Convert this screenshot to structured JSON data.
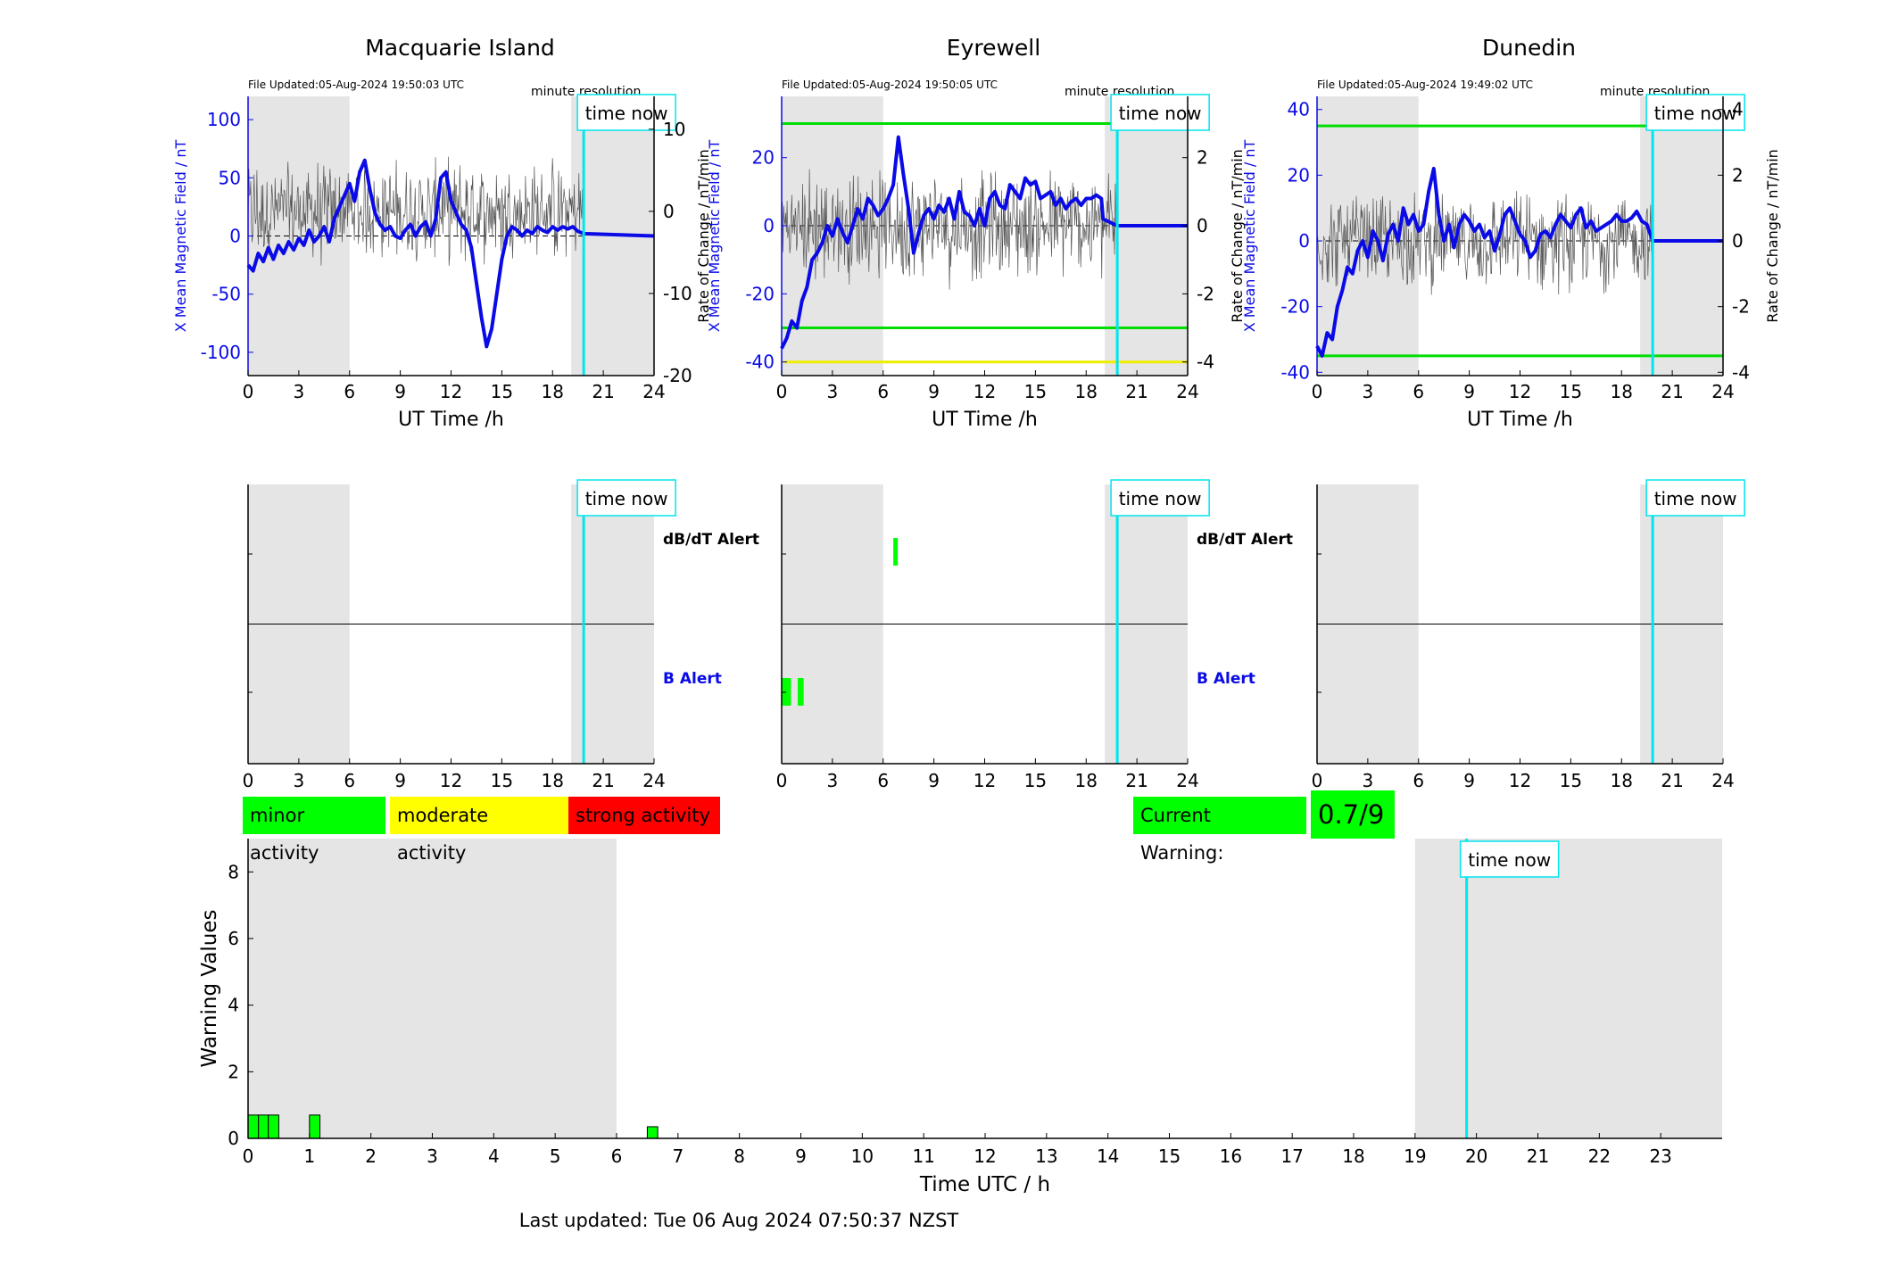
{
  "colors": {
    "x_field": "#0a0ae6",
    "rate": "#555555",
    "night": "#e5e5e5",
    "time_now": "#00e5ee",
    "minor": "#00ff00",
    "moderate": "#ffff00",
    "strong": "#ff0000"
  },
  "time_now_h": 19.84,
  "night_bands_h": [
    [
      0,
      6
    ],
    [
      19.1,
      24
    ]
  ],
  "time_now_label": "time now",
  "stations": [
    {
      "name": "Macquarie Island",
      "file_updated": "File Updated:05-Aug-2024 19:50:03 UTC",
      "resolution": "minute resolution",
      "xlabel": "UT Time /h",
      "ylabel_left": "X Mean Magnetic Field / nT",
      "ylabel_right": "Rate of Change / nT/min",
      "ylim_left": [
        -120,
        120
      ],
      "yticks_left": [
        "100",
        "50",
        "0",
        "-50",
        "-100"
      ],
      "yticks_left_values": [
        100,
        50,
        0,
        -50,
        -100
      ],
      "ylim_right": [
        -20,
        14
      ],
      "yticks_right": [
        "10",
        "0",
        "-10",
        "-20"
      ],
      "yticks_right_values": [
        10,
        0,
        -10,
        -20
      ],
      "xticks": [
        "0",
        "3",
        "6",
        "9",
        "12",
        "15",
        "18",
        "21",
        "24"
      ],
      "threshold_lines": [],
      "x_field_series": [
        [
          0,
          -25
        ],
        [
          0.3,
          -30
        ],
        [
          0.6,
          -15
        ],
        [
          0.9,
          -22
        ],
        [
          1.2,
          -10
        ],
        [
          1.5,
          -20
        ],
        [
          1.8,
          -8
        ],
        [
          2.1,
          -15
        ],
        [
          2.4,
          -5
        ],
        [
          2.7,
          -12
        ],
        [
          3.0,
          -2
        ],
        [
          3.3,
          -8
        ],
        [
          3.6,
          5
        ],
        [
          3.9,
          -5
        ],
        [
          4.2,
          0
        ],
        [
          4.5,
          8
        ],
        [
          4.8,
          -5
        ],
        [
          5.1,
          15
        ],
        [
          5.4,
          25
        ],
        [
          5.7,
          35
        ],
        [
          6.0,
          45
        ],
        [
          6.3,
          30
        ],
        [
          6.6,
          55
        ],
        [
          6.9,
          65
        ],
        [
          7.2,
          40
        ],
        [
          7.5,
          20
        ],
        [
          7.8,
          10
        ],
        [
          8.1,
          5
        ],
        [
          8.4,
          8
        ],
        [
          8.7,
          0
        ],
        [
          9.0,
          -2
        ],
        [
          9.3,
          5
        ],
        [
          9.6,
          10
        ],
        [
          9.9,
          0
        ],
        [
          10.2,
          8
        ],
        [
          10.5,
          12
        ],
        [
          10.8,
          0
        ],
        [
          11.1,
          15
        ],
        [
          11.4,
          50
        ],
        [
          11.7,
          55
        ],
        [
          12.0,
          30
        ],
        [
          12.3,
          20
        ],
        [
          12.6,
          10
        ],
        [
          12.9,
          5
        ],
        [
          13.2,
          -10
        ],
        [
          13.5,
          -40
        ],
        [
          13.8,
          -70
        ],
        [
          14.1,
          -95
        ],
        [
          14.4,
          -80
        ],
        [
          14.7,
          -50
        ],
        [
          15.0,
          -20
        ],
        [
          15.3,
          0
        ],
        [
          15.6,
          8
        ],
        [
          15.9,
          5
        ],
        [
          16.2,
          0
        ],
        [
          16.5,
          5
        ],
        [
          16.8,
          2
        ],
        [
          17.1,
          8
        ],
        [
          17.4,
          5
        ],
        [
          17.7,
          3
        ],
        [
          18.0,
          8
        ],
        [
          18.3,
          5
        ],
        [
          18.6,
          8
        ],
        [
          18.9,
          6
        ],
        [
          19.2,
          8
        ],
        [
          19.5,
          4
        ],
        [
          19.84,
          2
        ],
        [
          24,
          0
        ]
      ],
      "rate_amplitude": 6,
      "alerts_dbdt": [],
      "alerts_b": []
    },
    {
      "name": "Eyrewell",
      "file_updated": "File Updated:05-Aug-2024 19:50:05 UTC",
      "resolution": "minute resolution",
      "xlabel": "UT Time /h",
      "ylabel_left": "X Mean Magnetic Field / nT",
      "ylabel_right": "Rate of Change / nT/min",
      "ylim_left": [
        -44,
        38
      ],
      "yticks_left": [
        "20",
        "0",
        "-20",
        "-40"
      ],
      "yticks_left_values": [
        20,
        0,
        -20,
        -40
      ],
      "ylim_right": [
        -4.4,
        3.8
      ],
      "yticks_right": [
        "2",
        "0",
        "-2",
        "-4"
      ],
      "yticks_right_values": [
        2,
        0,
        -2,
        -4
      ],
      "xticks": [
        "0",
        "3",
        "6",
        "9",
        "12",
        "15",
        "18",
        "21",
        "24"
      ],
      "threshold_lines": [
        {
          "value": 30,
          "color": "#00dd00"
        },
        {
          "value": -30,
          "color": "#00dd00"
        },
        {
          "value": -40,
          "color": "#eeee00"
        }
      ],
      "x_field_series": [
        [
          0,
          -36
        ],
        [
          0.3,
          -33
        ],
        [
          0.6,
          -28
        ],
        [
          0.9,
          -30
        ],
        [
          1.2,
          -22
        ],
        [
          1.5,
          -18
        ],
        [
          1.8,
          -10
        ],
        [
          2.1,
          -8
        ],
        [
          2.4,
          -5
        ],
        [
          2.7,
          0
        ],
        [
          3.0,
          -3
        ],
        [
          3.3,
          2
        ],
        [
          3.6,
          -2
        ],
        [
          3.9,
          -5
        ],
        [
          4.2,
          0
        ],
        [
          4.5,
          5
        ],
        [
          4.8,
          2
        ],
        [
          5.1,
          8
        ],
        [
          5.4,
          6
        ],
        [
          5.7,
          3
        ],
        [
          6.0,
          5
        ],
        [
          6.3,
          8
        ],
        [
          6.6,
          12
        ],
        [
          6.9,
          26
        ],
        [
          7.2,
          15
        ],
        [
          7.5,
          5
        ],
        [
          7.8,
          -8
        ],
        [
          8.1,
          -2
        ],
        [
          8.4,
          3
        ],
        [
          8.7,
          5
        ],
        [
          9.0,
          2
        ],
        [
          9.3,
          6
        ],
        [
          9.6,
          4
        ],
        [
          9.9,
          8
        ],
        [
          10.2,
          2
        ],
        [
          10.5,
          10
        ],
        [
          10.8,
          4
        ],
        [
          11.1,
          3
        ],
        [
          11.4,
          0
        ],
        [
          11.7,
          5
        ],
        [
          12.0,
          0
        ],
        [
          12.3,
          8
        ],
        [
          12.6,
          10
        ],
        [
          12.9,
          6
        ],
        [
          13.2,
          5
        ],
        [
          13.5,
          12
        ],
        [
          13.8,
          10
        ],
        [
          14.1,
          8
        ],
        [
          14.4,
          14
        ],
        [
          14.7,
          12
        ],
        [
          15.0,
          13
        ],
        [
          15.3,
          8
        ],
        [
          15.6,
          9
        ],
        [
          15.9,
          10
        ],
        [
          16.2,
          6
        ],
        [
          16.5,
          8
        ],
        [
          16.8,
          5
        ],
        [
          17.1,
          7
        ],
        [
          17.4,
          8
        ],
        [
          17.7,
          6
        ],
        [
          18.0,
          8
        ],
        [
          18.3,
          8
        ],
        [
          18.6,
          9
        ],
        [
          18.9,
          8
        ],
        [
          19.0,
          2
        ],
        [
          19.84,
          0
        ],
        [
          24,
          0
        ]
      ],
      "rate_amplitude": 1.6,
      "alerts_dbdt": [
        [
          6.6,
          6.8
        ]
      ],
      "alerts_b": [
        [
          0.0,
          0.55
        ],
        [
          0.95,
          1.3
        ]
      ]
    },
    {
      "name": "Dunedin",
      "file_updated": "File Updated:05-Aug-2024 19:49:02 UTC",
      "resolution": "minute resolution",
      "xlabel": "UT Time /h",
      "ylabel_left": "X Mean Magnetic Field / nT",
      "ylabel_right": "Rate of Change / nT/min",
      "ylim_left": [
        -41,
        44
      ],
      "yticks_left": [
        "40",
        "20",
        "0",
        "-20",
        "-40"
      ],
      "yticks_left_values": [
        40,
        20,
        0,
        -20,
        -40
      ],
      "ylim_right": [
        -4.1,
        4.4
      ],
      "yticks_right": [
        "4",
        "2",
        "0",
        "-2",
        "-4"
      ],
      "yticks_right_values": [
        4,
        2,
        0,
        -2,
        -4
      ],
      "xticks": [
        "0",
        "3",
        "6",
        "9",
        "12",
        "15",
        "18",
        "21",
        "24"
      ],
      "threshold_lines": [
        {
          "value": 35,
          "color": "#00dd00"
        },
        {
          "value": -35,
          "color": "#00dd00"
        }
      ],
      "x_field_series": [
        [
          0,
          -32
        ],
        [
          0.3,
          -35
        ],
        [
          0.6,
          -28
        ],
        [
          0.9,
          -30
        ],
        [
          1.2,
          -20
        ],
        [
          1.5,
          -15
        ],
        [
          1.8,
          -8
        ],
        [
          2.1,
          -10
        ],
        [
          2.4,
          -3
        ],
        [
          2.7,
          0
        ],
        [
          3.0,
          -5
        ],
        [
          3.3,
          3
        ],
        [
          3.6,
          0
        ],
        [
          3.9,
          -6
        ],
        [
          4.2,
          2
        ],
        [
          4.5,
          5
        ],
        [
          4.8,
          0
        ],
        [
          5.1,
          10
        ],
        [
          5.4,
          5
        ],
        [
          5.7,
          8
        ],
        [
          6.0,
          3
        ],
        [
          6.3,
          5
        ],
        [
          6.6,
          15
        ],
        [
          6.9,
          22
        ],
        [
          7.2,
          8
        ],
        [
          7.5,
          0
        ],
        [
          7.8,
          5
        ],
        [
          8.1,
          -2
        ],
        [
          8.4,
          5
        ],
        [
          8.7,
          8
        ],
        [
          9.0,
          6
        ],
        [
          9.3,
          3
        ],
        [
          9.6,
          5
        ],
        [
          9.9,
          1
        ],
        [
          10.2,
          3
        ],
        [
          10.5,
          -3
        ],
        [
          10.8,
          2
        ],
        [
          11.1,
          8
        ],
        [
          11.4,
          10
        ],
        [
          11.7,
          6
        ],
        [
          12.0,
          2
        ],
        [
          12.3,
          0
        ],
        [
          12.6,
          -5
        ],
        [
          12.9,
          -3
        ],
        [
          13.2,
          2
        ],
        [
          13.5,
          3
        ],
        [
          13.8,
          1
        ],
        [
          14.1,
          5
        ],
        [
          14.4,
          8
        ],
        [
          14.7,
          6
        ],
        [
          15.0,
          4
        ],
        [
          15.3,
          8
        ],
        [
          15.6,
          10
        ],
        [
          15.9,
          4
        ],
        [
          16.2,
          6
        ],
        [
          16.5,
          3
        ],
        [
          16.8,
          4
        ],
        [
          17.1,
          5
        ],
        [
          17.4,
          6
        ],
        [
          17.7,
          8
        ],
        [
          18.0,
          6
        ],
        [
          18.3,
          6
        ],
        [
          18.6,
          7
        ],
        [
          18.9,
          9
        ],
        [
          19.2,
          6
        ],
        [
          19.5,
          5
        ],
        [
          19.84,
          0
        ],
        [
          24,
          0
        ]
      ],
      "rate_amplitude": 1.4,
      "alerts_dbdt": [],
      "alerts_b": []
    }
  ],
  "alert_labels": {
    "dbdt": "dB/dT Alert",
    "b": "B Alert"
  },
  "legend": {
    "minor": "minor activity",
    "moderate": "moderate activity",
    "strong": "strong activity",
    "current_warning_label": "Current Warning:",
    "current_warning_value": "0.7/9"
  },
  "chart_data": [
    {
      "type": "line",
      "title": "Macquarie Island",
      "xlabel": "UT Time /h",
      "ylabel": "X Mean Magnetic Field / nT",
      "y2label": "Rate of Change / nT/min",
      "xlim": [
        0,
        24
      ],
      "ylim": [
        -120,
        120
      ],
      "y2lim": [
        -20,
        14
      ],
      "series": []
    },
    {
      "type": "line",
      "title": "Eyrewell",
      "xlabel": "UT Time /h",
      "ylabel": "X Mean Magnetic Field / nT",
      "y2label": "Rate of Change / nT/min",
      "xlim": [
        0,
        24
      ],
      "ylim": [
        -44,
        38
      ],
      "y2lim": [
        -4.4,
        3.8
      ],
      "series": []
    },
    {
      "type": "line",
      "title": "Dunedin",
      "xlabel": "UT Time /h",
      "ylabel": "X Mean Magnetic Field / nT",
      "y2label": "Rate of Change / nT/min",
      "xlim": [
        0,
        24
      ],
      "ylim": [
        -41,
        44
      ],
      "y2lim": [
        -4.1,
        4.4
      ],
      "series": []
    },
    {
      "type": "bar",
      "xlabel": "Time UTC / h",
      "ylabel": "Warning Values",
      "xlim": [
        0,
        24
      ],
      "ylim": [
        0,
        9
      ],
      "xticks": [
        "0",
        "1",
        "2",
        "3",
        "4",
        "5",
        "6",
        "7",
        "8",
        "9",
        "10",
        "11",
        "12",
        "13",
        "14",
        "15",
        "16",
        "17",
        "18",
        "19",
        "20",
        "21",
        "22",
        "23"
      ],
      "yticks": [
        "0",
        "2",
        "4",
        "6",
        "8"
      ],
      "bars": [
        {
          "x0": 0.0,
          "x1": 0.17,
          "value": 0.7
        },
        {
          "x0": 0.17,
          "x1": 0.33,
          "value": 0.7
        },
        {
          "x0": 0.33,
          "x1": 0.5,
          "value": 0.7
        },
        {
          "x0": 1.0,
          "x1": 1.17,
          "value": 0.7
        },
        {
          "x0": 6.5,
          "x1": 6.67,
          "value": 0.35
        }
      ],
      "night_bands": [
        [
          0,
          6
        ],
        [
          19,
          24
        ]
      ]
    }
  ],
  "footer": "Last updated: Tue 06 Aug 2024 07:50:37 NZST"
}
